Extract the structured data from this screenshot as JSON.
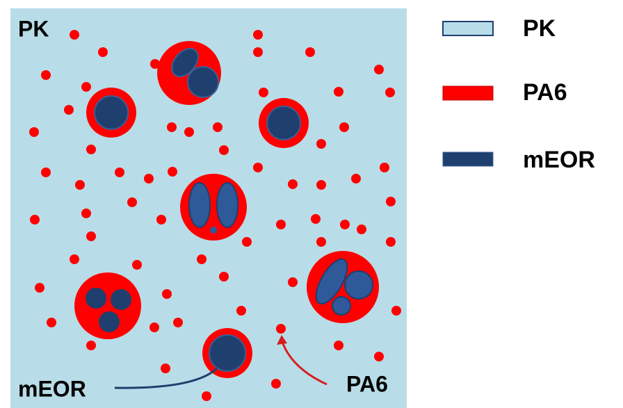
{
  "labels": {
    "matrix": "PK",
    "droplet": "mEOR",
    "particle": "PA6"
  },
  "legend": [
    {
      "label": "PK"
    },
    {
      "label": "PA6"
    },
    {
      "label": "mEOR"
    }
  ]
}
